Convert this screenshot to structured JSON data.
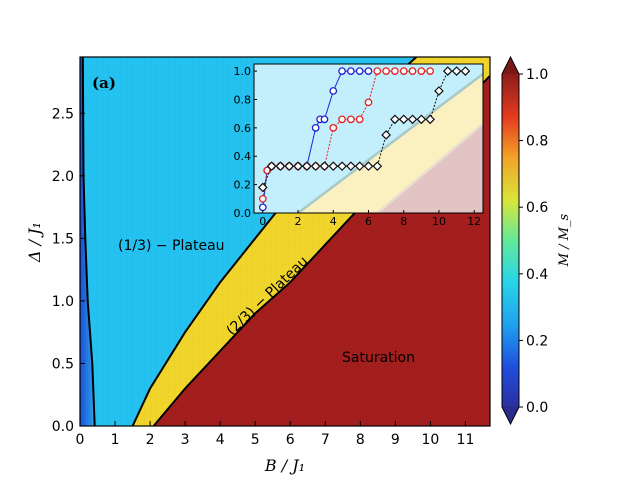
{
  "chart_data": {
    "type": "heatmap",
    "panel_label": "(a)",
    "xlabel": "B / J₁",
    "ylabel": "Δ / J₁",
    "xlim": [
      0,
      11.7
    ],
    "ylim": [
      0,
      2.95
    ],
    "xticks": [
      "0",
      "1",
      "2",
      "3",
      "4",
      "5",
      "6",
      "7",
      "8",
      "9",
      "10",
      "11"
    ],
    "yticks": [
      "0.0",
      "0.5",
      "1.0",
      "1.5",
      "2.0",
      "2.5"
    ],
    "colorbar": {
      "label": "M / M_s",
      "ticks": [
        "0.0",
        "0.2",
        "0.4",
        "0.6",
        "0.8",
        "1.0"
      ],
      "range": [
        0,
        1
      ]
    },
    "regions": {
      "one_third": "(1/3) − Plateau",
      "two_third": "(2/3) − Plateau",
      "saturation": "Saturation"
    },
    "boundaries": {
      "low_field": [
        [
          0.08,
          2.95
        ],
        [
          0.1,
          2.0
        ],
        [
          0.15,
          1.5
        ],
        [
          0.22,
          1.0
        ],
        [
          0.35,
          0.5
        ],
        [
          0.42,
          0.0
        ]
      ],
      "upper_third": [
        [
          1.5,
          0.0
        ],
        [
          2.0,
          0.3
        ],
        [
          3.0,
          0.75
        ],
        [
          4.0,
          1.15
        ],
        [
          5.0,
          1.5
        ],
        [
          6.0,
          1.85
        ],
        [
          7.0,
          2.2
        ],
        [
          8.0,
          2.5
        ],
        [
          9.0,
          2.8
        ],
        [
          9.6,
          2.95
        ]
      ],
      "saturation_line": [
        [
          2.1,
          0.0
        ],
        [
          3.0,
          0.3
        ],
        [
          4.0,
          0.6
        ],
        [
          5.0,
          0.9
        ],
        [
          6.0,
          1.15
        ],
        [
          7.0,
          1.45
        ],
        [
          8.0,
          1.75
        ],
        [
          9.0,
          2.05
        ],
        [
          10.0,
          2.35
        ],
        [
          11.0,
          2.6
        ],
        [
          11.7,
          2.8
        ]
      ]
    },
    "inset": {
      "xlim": [
        -0.5,
        12.5
      ],
      "ylim": [
        0,
        1.05
      ],
      "xticks": [
        "0",
        "2",
        "4",
        "6",
        "8",
        "10",
        "12"
      ],
      "yticks": [
        "0.0",
        "0.2",
        "0.4",
        "0.6",
        "0.8",
        "1.0"
      ],
      "series": [
        {
          "name": "blue",
          "color": "#1f1fd6",
          "marker": "circle",
          "x": [
            0,
            0.25,
            0.5,
            1,
            1.5,
            2,
            2.5,
            3,
            3.25,
            3.5,
            4,
            4.5,
            5,
            5.5,
            6
          ],
          "y": [
            0.04,
            0.3,
            0.33,
            0.33,
            0.33,
            0.33,
            0.33,
            0.6,
            0.66,
            0.66,
            0.86,
            1.0,
            1.0,
            1.0,
            1.0
          ]
        },
        {
          "name": "red",
          "color": "#e02020",
          "marker": "circle",
          "x": [
            0,
            0.25,
            0.5,
            1,
            1.5,
            2,
            2.5,
            3,
            3.5,
            4,
            4.5,
            5,
            5.5,
            6,
            6.5,
            7,
            7.5,
            8,
            8.5,
            9,
            9.5
          ],
          "y": [
            0.1,
            0.3,
            0.33,
            0.33,
            0.33,
            0.33,
            0.33,
            0.33,
            0.33,
            0.6,
            0.66,
            0.66,
            0.66,
            0.78,
            1.0,
            1.0,
            1.0,
            1.0,
            1.0,
            1.0,
            1.0
          ]
        },
        {
          "name": "black",
          "color": "#111111",
          "marker": "diamond",
          "x": [
            0,
            0.5,
            1,
            1.5,
            2,
            2.5,
            3,
            3.5,
            4,
            4.5,
            5,
            5.5,
            6,
            6.5,
            7,
            7.5,
            8,
            8.5,
            9,
            9.5,
            10,
            10.5,
            11,
            11.5
          ],
          "y": [
            0.18,
            0.33,
            0.33,
            0.33,
            0.33,
            0.33,
            0.33,
            0.33,
            0.33,
            0.33,
            0.33,
            0.33,
            0.33,
            0.33,
            0.55,
            0.66,
            0.66,
            0.66,
            0.66,
            0.66,
            0.86,
            1.0,
            1.0,
            1.0
          ]
        }
      ]
    }
  }
}
